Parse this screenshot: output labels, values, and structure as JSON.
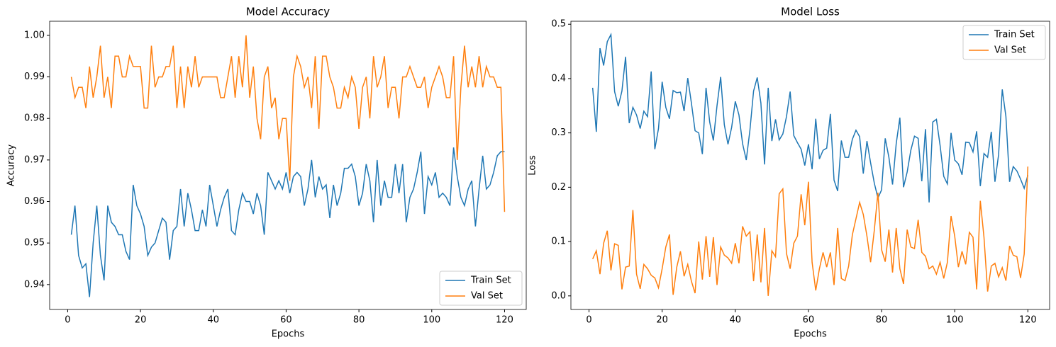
{
  "chart_data": [
    {
      "type": "line",
      "title": "Model Accuracy",
      "xlabel": "Epochs",
      "ylabel": "Accuracy",
      "x": [
        1,
        2,
        3,
        4,
        5,
        6,
        7,
        8,
        9,
        10,
        11,
        12,
        13,
        14,
        15,
        16,
        17,
        18,
        19,
        20,
        21,
        22,
        23,
        24,
        25,
        26,
        27,
        28,
        29,
        30,
        31,
        32,
        33,
        34,
        35,
        36,
        37,
        38,
        39,
        40,
        41,
        42,
        43,
        44,
        45,
        46,
        47,
        48,
        49,
        50,
        51,
        52,
        53,
        54,
        55,
        56,
        57,
        58,
        59,
        60,
        61,
        62,
        63,
        64,
        65,
        66,
        67,
        68,
        69,
        70,
        71,
        72,
        73,
        74,
        75,
        76,
        77,
        78,
        79,
        80,
        81,
        82,
        83,
        84,
        85,
        86,
        87,
        88,
        89,
        90,
        91,
        92,
        93,
        94,
        95,
        96,
        97,
        98,
        99,
        100,
        101,
        102,
        103,
        104,
        105,
        106,
        107,
        108,
        109,
        110,
        111,
        112,
        113,
        114,
        115,
        116,
        117,
        118,
        119,
        120
      ],
      "series": [
        {
          "name": "Train Set",
          "color": "#1f77b4",
          "values": [
            0.952,
            0.959,
            0.947,
            0.944,
            0.945,
            0.937,
            0.95,
            0.959,
            0.947,
            0.941,
            0.959,
            0.955,
            0.954,
            0.952,
            0.952,
            0.948,
            0.946,
            0.964,
            0.959,
            0.957,
            0.954,
            0.947,
            0.949,
            0.95,
            0.953,
            0.956,
            0.955,
            0.946,
            0.953,
            0.954,
            0.963,
            0.954,
            0.962,
            0.958,
            0.953,
            0.953,
            0.958,
            0.954,
            0.964,
            0.959,
            0.954,
            0.958,
            0.961,
            0.963,
            0.953,
            0.952,
            0.958,
            0.962,
            0.96,
            0.96,
            0.957,
            0.962,
            0.959,
            0.952,
            0.967,
            0.965,
            0.963,
            0.965,
            0.963,
            0.967,
            0.962,
            0.966,
            0.967,
            0.966,
            0.959,
            0.963,
            0.97,
            0.961,
            0.966,
            0.963,
            0.964,
            0.956,
            0.964,
            0.959,
            0.962,
            0.968,
            0.968,
            0.969,
            0.966,
            0.959,
            0.962,
            0.969,
            0.965,
            0.955,
            0.97,
            0.959,
            0.965,
            0.961,
            0.961,
            0.969,
            0.962,
            0.969,
            0.955,
            0.961,
            0.963,
            0.967,
            0.972,
            0.957,
            0.966,
            0.964,
            0.967,
            0.961,
            0.962,
            0.961,
            0.959,
            0.973,
            0.966,
            0.961,
            0.959,
            0.963,
            0.965,
            0.954,
            0.963,
            0.971,
            0.963,
            0.964,
            0.967,
            0.971,
            0.972,
            0.972
          ]
        },
        {
          "name": "Val Set",
          "color": "#ff7f0e",
          "values": [
            0.99,
            0.985,
            0.9875,
            0.9875,
            0.9825,
            0.9925,
            0.985,
            0.99,
            0.9975,
            0.985,
            0.99,
            0.9825,
            0.995,
            0.995,
            0.99,
            0.99,
            0.995,
            0.9925,
            0.9925,
            0.9925,
            0.9825,
            0.9825,
            0.9975,
            0.9875,
            0.99,
            0.99,
            0.9925,
            0.9925,
            0.9975,
            0.9825,
            0.9925,
            0.9825,
            0.9925,
            0.9875,
            0.995,
            0.9875,
            0.99,
            0.99,
            0.99,
            0.99,
            0.99,
            0.985,
            0.985,
            0.99,
            0.995,
            0.985,
            0.995,
            0.9875,
            1.0,
            0.985,
            0.9925,
            0.98,
            0.975,
            0.99,
            0.9925,
            0.9825,
            0.985,
            0.975,
            0.98,
            0.98,
            0.965,
            0.99,
            0.995,
            0.9925,
            0.9875,
            0.99,
            0.9825,
            0.995,
            0.9775,
            0.995,
            0.995,
            0.99,
            0.9875,
            0.9825,
            0.9825,
            0.9875,
            0.985,
            0.99,
            0.9875,
            0.9775,
            0.9875,
            0.99,
            0.98,
            0.995,
            0.9875,
            0.99,
            0.995,
            0.9825,
            0.9875,
            0.9875,
            0.98,
            0.99,
            0.99,
            0.9925,
            0.99,
            0.9875,
            0.9875,
            0.99,
            0.9825,
            0.9875,
            0.99,
            0.9925,
            0.99,
            0.985,
            0.985,
            0.995,
            0.97,
            0.9875,
            0.9975,
            0.9875,
            0.9925,
            0.9875,
            0.995,
            0.9875,
            0.9925,
            0.99,
            0.99,
            0.9875,
            0.9875,
            0.9575
          ]
        }
      ],
      "xlim": [
        -4.95,
        125.95
      ],
      "xticks": [
        0,
        20,
        40,
        60,
        80,
        100,
        120
      ],
      "ylim": [
        0.934,
        1.0034
      ],
      "yticks": [
        0.94,
        0.95,
        0.96,
        0.97,
        0.98,
        0.99,
        {
          "value": 1.0,
          "label": "1.00"
        }
      ],
      "legend": "lower right"
    },
    {
      "type": "line",
      "title": "Model Loss",
      "xlabel": "Epochs",
      "ylabel": "Loss",
      "x": [
        1,
        2,
        3,
        4,
        5,
        6,
        7,
        8,
        9,
        10,
        11,
        12,
        13,
        14,
        15,
        16,
        17,
        18,
        19,
        20,
        21,
        22,
        23,
        24,
        25,
        26,
        27,
        28,
        29,
        30,
        31,
        32,
        33,
        34,
        35,
        36,
        37,
        38,
        39,
        40,
        41,
        42,
        43,
        44,
        45,
        46,
        47,
        48,
        49,
        50,
        51,
        52,
        53,
        54,
        55,
        56,
        57,
        58,
        59,
        60,
        61,
        62,
        63,
        64,
        65,
        66,
        67,
        68,
        69,
        70,
        71,
        72,
        73,
        74,
        75,
        76,
        77,
        78,
        79,
        80,
        81,
        82,
        83,
        84,
        85,
        86,
        87,
        88,
        89,
        90,
        91,
        92,
        93,
        94,
        95,
        96,
        97,
        98,
        99,
        100,
        101,
        102,
        103,
        104,
        105,
        106,
        107,
        108,
        109,
        110,
        111,
        112,
        113,
        114,
        115,
        116,
        117,
        118,
        119,
        120
      ],
      "series": [
        {
          "name": "Train Set",
          "color": "#1f77b4",
          "values": [
            0.383,
            0.302,
            0.456,
            0.424,
            0.468,
            0.481,
            0.376,
            0.349,
            0.377,
            0.44,
            0.318,
            0.347,
            0.333,
            0.308,
            0.34,
            0.33,
            0.413,
            0.27,
            0.308,
            0.394,
            0.347,
            0.326,
            0.378,
            0.374,
            0.375,
            0.34,
            0.401,
            0.355,
            0.304,
            0.3,
            0.261,
            0.383,
            0.32,
            0.286,
            0.35,
            0.403,
            0.315,
            0.279,
            0.31,
            0.358,
            0.333,
            0.28,
            0.25,
            0.305,
            0.377,
            0.402,
            0.355,
            0.242,
            0.383,
            0.285,
            0.325,
            0.287,
            0.298,
            0.33,
            0.376,
            0.295,
            0.282,
            0.27,
            0.24,
            0.279,
            0.233,
            0.326,
            0.252,
            0.268,
            0.272,
            0.335,
            0.213,
            0.193,
            0.286,
            0.255,
            0.255,
            0.288,
            0.305,
            0.293,
            0.225,
            0.285,
            0.245,
            0.208,
            0.18,
            0.195,
            0.29,
            0.255,
            0.205,
            0.28,
            0.328,
            0.2,
            0.228,
            0.268,
            0.294,
            0.29,
            0.211,
            0.307,
            0.172,
            0.32,
            0.325,
            0.277,
            0.22,
            0.206,
            0.3,
            0.25,
            0.243,
            0.223,
            0.283,
            0.282,
            0.265,
            0.303,
            0.202,
            0.262,
            0.255,
            0.302,
            0.21,
            0.26,
            0.38,
            0.33,
            0.21,
            0.238,
            0.23,
            0.215,
            0.198,
            0.222
          ]
        },
        {
          "name": "Val Set",
          "color": "#ff7f0e",
          "values": [
            0.068,
            0.083,
            0.04,
            0.097,
            0.12,
            0.047,
            0.096,
            0.093,
            0.012,
            0.053,
            0.055,
            0.158,
            0.04,
            0.013,
            0.058,
            0.05,
            0.038,
            0.033,
            0.015,
            0.05,
            0.09,
            0.113,
            0.002,
            0.053,
            0.082,
            0.036,
            0.058,
            0.027,
            0.005,
            0.1,
            0.03,
            0.11,
            0.035,
            0.108,
            0.02,
            0.09,
            0.075,
            0.07,
            0.06,
            0.097,
            0.06,
            0.128,
            0.11,
            0.118,
            0.027,
            0.113,
            0.025,
            0.125,
            0.0,
            0.083,
            0.072,
            0.188,
            0.197,
            0.078,
            0.05,
            0.097,
            0.11,
            0.187,
            0.13,
            0.21,
            0.062,
            0.01,
            0.05,
            0.08,
            0.053,
            0.08,
            0.02,
            0.125,
            0.032,
            0.028,
            0.055,
            0.112,
            0.142,
            0.172,
            0.15,
            0.11,
            0.062,
            0.12,
            0.19,
            0.085,
            0.063,
            0.122,
            0.043,
            0.125,
            0.05,
            0.022,
            0.122,
            0.09,
            0.087,
            0.14,
            0.08,
            0.073,
            0.05,
            0.055,
            0.04,
            0.062,
            0.032,
            0.062,
            0.147,
            0.11,
            0.053,
            0.082,
            0.058,
            0.117,
            0.108,
            0.012,
            0.175,
            0.108,
            0.008,
            0.055,
            0.06,
            0.035,
            0.052,
            0.028,
            0.092,
            0.075,
            0.072,
            0.033,
            0.077,
            0.238
          ]
        }
      ],
      "xlim": [
        -4.95,
        125.95
      ],
      "xticks": [
        0,
        20,
        40,
        60,
        80,
        100,
        120
      ],
      "ylim": [
        -0.025,
        0.5055
      ],
      "yticks": [
        {
          "value": 0,
          "label": "0.0"
        },
        0.1,
        0.2,
        0.3,
        0.4,
        0.5
      ],
      "legend": "upper right"
    }
  ]
}
